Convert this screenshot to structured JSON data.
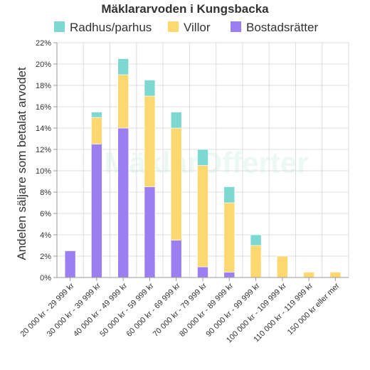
{
  "chart_data": {
    "type": "bar",
    "stacked": true,
    "title": "Mäklararvoden i Kungsbacka",
    "ylabel": "Andelen säljare som betalat arvodet",
    "xlabel": "",
    "ylim": [
      0,
      22
    ],
    "ytick_step": 2,
    "ytick_suffix": "%",
    "grid": true,
    "legend_position": "top",
    "watermark": "MäklarOfferter",
    "categories": [
      "20 000 kr - 29 999 kr",
      "30 000 kr - 39 999 kr",
      "40 000 kr - 49 999 kr",
      "50 000 kr - 59 999 kr",
      "60 000 kr - 69 999 kr",
      "70 000 kr - 79 999 kr",
      "80 000 kr - 89 999 kr",
      "90 000 kr - 99 999 kr",
      "100 000 kr - 109 999 kr",
      "110 000 kr - 119 999 kr",
      "150 000 kr eller mer"
    ],
    "series": [
      {
        "name": "Bostadsrätter",
        "color": "#9b7ff0",
        "values": [
          2.5,
          12.5,
          14,
          8.5,
          3.5,
          1,
          0.5,
          0,
          0,
          0,
          0
        ]
      },
      {
        "name": "Villor",
        "color": "#fdd770",
        "values": [
          0,
          2.5,
          5,
          8.5,
          10.5,
          9.5,
          6.5,
          3,
          2,
          0.5,
          0.5
        ]
      },
      {
        "name": "Radhus/parhus",
        "color": "#7dd8d2",
        "values": [
          0,
          0.5,
          1.5,
          1.5,
          1.5,
          1.5,
          1.5,
          1,
          0,
          0,
          0
        ]
      }
    ],
    "legend_order": [
      "Radhus/parhus",
      "Villor",
      "Bostadsrätter"
    ]
  }
}
